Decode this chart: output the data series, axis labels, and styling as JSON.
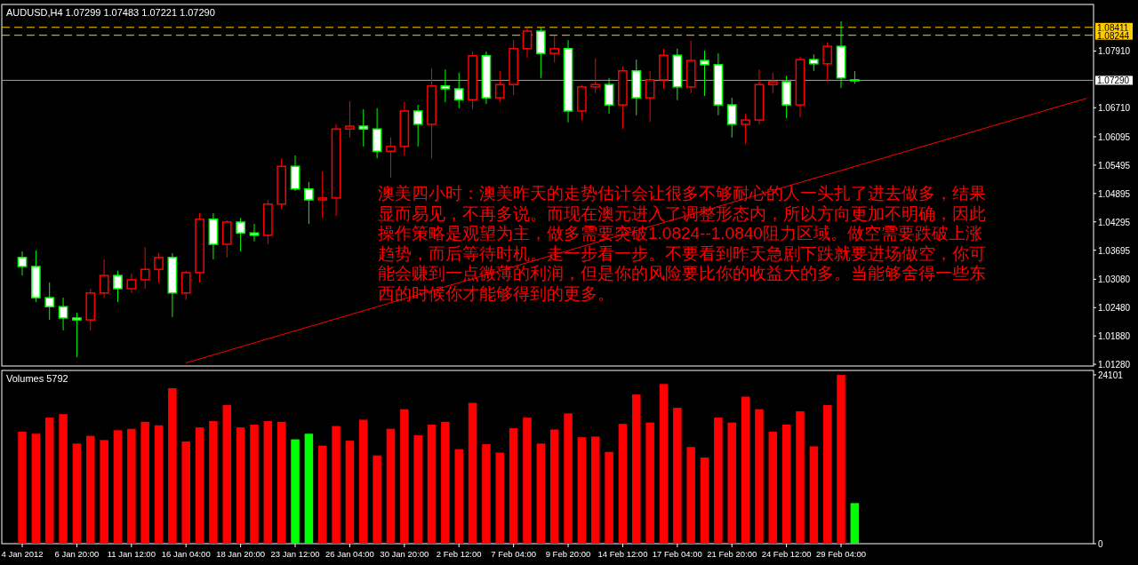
{
  "chart_data": [
    {
      "type": "candlestick",
      "title": "AUDUSD,H4  1.07299 1.07483 1.07221 1.07290",
      "categories": [
        null,
        null,
        null,
        null,
        null,
        null,
        null,
        null,
        null,
        null,
        null,
        null,
        null,
        null,
        null,
        null,
        null,
        null,
        null,
        null,
        null,
        null,
        null,
        null,
        null,
        null,
        null,
        null,
        null,
        null,
        null,
        null,
        null,
        null,
        null,
        null,
        null,
        null,
        null,
        null,
        null,
        null,
        null,
        null,
        null,
        null,
        null,
        null,
        null,
        null,
        null,
        null,
        null,
        null,
        null,
        null,
        null,
        null,
        null,
        null,
        null,
        null,
        null,
        null,
        null,
        null,
        null,
        null,
        null,
        null,
        null,
        null,
        null,
        null,
        null,
        null,
        null,
        null,
        null,
        null
      ],
      "ohlc": [
        null,
        [
          1.0354,
          1.0367,
          1.0316,
          1.0335
        ],
        [
          1.0335,
          1.0369,
          1.026,
          1.0269
        ],
        [
          1.0269,
          1.0301,
          1.0222,
          1.025
        ],
        [
          1.025,
          1.0269,
          1.02,
          1.0226
        ],
        [
          1.0226,
          1.0237,
          1.0143,
          1.0222
        ],
        [
          1.0222,
          1.0288,
          1.02,
          1.0279
        ],
        [
          1.0279,
          1.035,
          1.0269,
          1.0316
        ],
        [
          1.0316,
          1.0326,
          1.026,
          1.0288
        ],
        [
          1.0288,
          1.032,
          1.0279,
          1.0307
        ],
        [
          1.0307,
          1.0376,
          1.0288,
          1.0329
        ],
        [
          1.0329,
          1.0363,
          1.0301,
          1.0354
        ],
        [
          1.0354,
          1.0363,
          1.0228,
          1.0279
        ],
        [
          1.0279,
          1.0326,
          1.0264,
          1.0322
        ],
        [
          1.0322,
          1.0448,
          1.0301,
          1.0435
        ],
        [
          1.0435,
          1.0448,
          1.035,
          1.0382
        ],
        [
          1.0382,
          1.0433,
          1.0354,
          1.0429
        ],
        [
          1.0429,
          1.0438,
          1.0367,
          1.0406
        ],
        [
          1.0406,
          1.0425,
          1.0388,
          1.0401
        ],
        [
          1.0401,
          1.0476,
          1.0382,
          1.0467
        ],
        [
          1.0467,
          1.0564,
          1.0457,
          1.0547
        ],
        [
          1.0547,
          1.057,
          1.0495,
          1.0499
        ],
        [
          1.0499,
          1.0514,
          1.0425,
          1.0476
        ],
        [
          1.0476,
          1.0536,
          1.0438,
          1.048
        ],
        [
          1.048,
          1.0636,
          1.0442,
          1.0626
        ],
        [
          1.0626,
          1.0685,
          1.0608,
          1.0632
        ],
        [
          1.0632,
          1.0668,
          1.0589,
          1.0626
        ],
        [
          1.0626,
          1.067,
          1.0564,
          1.0579
        ],
        [
          1.0579,
          1.0608,
          1.0523,
          1.0589
        ],
        [
          1.0589,
          1.0683,
          1.057,
          1.0664
        ],
        [
          1.0664,
          1.0677,
          1.0589,
          1.0636
        ],
        [
          1.0636,
          1.0754,
          1.0564,
          1.0717
        ],
        [
          1.0717,
          1.0752,
          1.0683,
          1.0711
        ],
        [
          1.0711,
          1.0745,
          1.067,
          1.0688
        ],
        [
          1.0688,
          1.079,
          1.0668,
          1.0781
        ],
        [
          1.0781,
          1.079,
          1.0679,
          1.0692
        ],
        [
          1.0692,
          1.0749,
          1.0683,
          1.072
        ],
        [
          1.072,
          1.0814,
          1.0698,
          1.0796
        ],
        [
          1.0796,
          1.0841,
          1.0777,
          1.0833
        ],
        [
          1.0833,
          1.0841,
          1.0734,
          1.0786
        ],
        [
          1.0786,
          1.0824,
          1.0767,
          1.0796
        ],
        [
          1.0796,
          1.0814,
          1.064,
          1.0664
        ],
        [
          1.0664,
          1.072,
          1.0645,
          1.0715
        ],
        [
          1.0715,
          1.0775,
          1.0702,
          1.072
        ],
        [
          1.072,
          1.0734,
          1.0658,
          1.0677
        ],
        [
          1.0677,
          1.0758,
          1.0626,
          1.0749
        ],
        [
          1.0749,
          1.0773,
          1.0655,
          1.0692
        ],
        [
          1.0692,
          1.0749,
          1.0641,
          1.073
        ],
        [
          1.073,
          1.0796,
          1.0711,
          1.0782
        ],
        [
          1.0782,
          1.0796,
          1.0687,
          1.0715
        ],
        [
          1.0715,
          1.0813,
          1.0702,
          1.0771
        ],
        [
          1.0771,
          1.0792,
          1.0696,
          1.0762
        ],
        [
          1.0762,
          1.0786,
          1.0655,
          1.0677
        ],
        [
          1.0677,
          1.0692,
          1.0608,
          1.0636
        ],
        [
          1.0636,
          1.0658,
          1.0594,
          1.0645
        ],
        [
          1.0645,
          1.0752,
          1.0636,
          1.072
        ],
        [
          1.072,
          1.0745,
          1.0702,
          1.0726
        ],
        [
          1.0726,
          1.0739,
          1.0649,
          1.0677
        ],
        [
          1.0677,
          1.0779,
          1.0651,
          1.0773
        ],
        [
          1.0773,
          1.0784,
          1.0749,
          1.0764
        ],
        [
          1.0764,
          1.0809,
          1.0726,
          1.0801
        ],
        [
          1.0801,
          1.0854,
          1.0713,
          1.0734
        ],
        [
          1.07299,
          1.07483,
          1.07221,
          1.0729
        ],
        null,
        null,
        null,
        null,
        null,
        null,
        null,
        null,
        null,
        null,
        null,
        null,
        null,
        null,
        null,
        null,
        null
      ],
      "series": [
        {
          "type": "line",
          "color": "#ff0000",
          "values": [
            null,
            null,
            null,
            null,
            null,
            null,
            null,
            null,
            null,
            null,
            null,
            null,
            null,
            1.0131,
            null,
            null,
            null,
            null,
            null,
            null,
            null,
            null,
            null,
            null,
            null,
            null,
            null,
            null,
            null,
            null,
            null,
            null,
            null,
            null,
            null,
            null,
            null,
            null,
            null,
            null,
            null,
            null,
            null,
            null,
            null,
            null,
            null,
            null,
            null,
            null,
            null,
            null,
            null,
            null,
            null,
            null,
            null,
            null,
            null,
            null,
            null,
            null,
            null,
            null,
            null,
            null,
            null,
            null,
            null,
            null,
            null,
            null,
            null,
            null,
            null,
            null,
            null,
            null,
            null,
            1.0691
          ]
        }
      ],
      "ylim": [
        1.01244,
        1.08896
      ],
      "yticks": [
        {
          "value": 1.0128,
          "label": "1.01280"
        },
        {
          "value": 1.0188,
          "label": "1.01880"
        },
        {
          "value": 1.0248,
          "label": "1.02480"
        },
        {
          "value": 1.0308,
          "label": "1.03080"
        },
        {
          "value": 1.03695,
          "label": "1.03695"
        },
        {
          "value": 1.04295,
          "label": "1.04295"
        },
        {
          "value": 1.04895,
          "label": "1.04895"
        },
        {
          "value": 1.05495,
          "label": "1.05495"
        },
        {
          "value": 1.06095,
          "label": "1.06095"
        },
        {
          "value": 1.0671,
          "label": "1.06710"
        },
        {
          "value": 1.0791,
          "label": "1.07910"
        }
      ],
      "ref_lines": [
        {
          "axis": "y",
          "value": 1.08411,
          "label": "1.08411",
          "color": "#ffcc00",
          "line_style": "dashed"
        },
        {
          "axis": "y",
          "value": 1.08244,
          "label": "1.08244",
          "color": "#ffcc00",
          "line_style": "dashed"
        },
        {
          "axis": "y",
          "value": 1.0729,
          "label": "1.07290",
          "color": "#a0a0a0",
          "line_style": "solid"
        }
      ],
      "annotations": [
        "澳美四小时：澳美昨天的走势估计会让很多不够耐心的人一头扎了进去做多，结果",
        "显而易见，不再多说。而现在澳元进入了调整形态内，所以方向更加不明确，因此",
        "操作策略是观望为主，做多需要突破1.0824--1.0840阻力区域。做空需要跌破上涨",
        "趋势，而后等待时机。走一步看一步。不要看到昨天急剧下跌就要进场做空，你可",
        "能会赚到一点微薄的利润，但是你的风险要比你的收益大的多。当能够舍得一些东",
        "西的时候你才能够得到的更多。"
      ],
      "tick_labels": "y"
    },
    {
      "type": "bar",
      "title": "Volumes 5792",
      "categories": [
        null,
        "4 Jan 2012",
        null,
        null,
        null,
        "6 Jan 20:00",
        null,
        null,
        null,
        "11 Jan 12:00",
        null,
        null,
        null,
        "16 Jan 04:00",
        null,
        null,
        null,
        "18 Jan 20:00",
        null,
        null,
        null,
        "23 Jan 12:00",
        null,
        null,
        null,
        "26 Jan 04:00",
        null,
        null,
        null,
        "30 Jan 20:00",
        null,
        null,
        null,
        "2 Feb 12:00",
        null,
        null,
        null,
        "7 Feb 04:00",
        null,
        null,
        null,
        "9 Feb 20:00",
        null,
        null,
        null,
        "14 Feb 12:00",
        null,
        null,
        null,
        "17 Feb 04:00",
        null,
        null,
        null,
        "21 Feb 20:00",
        null,
        null,
        null,
        "24 Feb 12:00",
        null,
        null,
        null,
        "29 Feb 04:00",
        null,
        null,
        null,
        null,
        null,
        null,
        null,
        null,
        null,
        null,
        null,
        null,
        null,
        null,
        null,
        null,
        null,
        null
      ],
      "values": [
        null,
        16000,
        15700,
        18000,
        18500,
        14300,
        15400,
        14800,
        16200,
        16400,
        17400,
        16900,
        22200,
        14600,
        16600,
        17500,
        19800,
        16600,
        17000,
        17500,
        17400,
        14900,
        15700,
        14000,
        16800,
        14700,
        17700,
        12600,
        16400,
        19200,
        15500,
        17000,
        17400,
        13500,
        20100,
        14200,
        13000,
        16500,
        18000,
        14300,
        16300,
        18600,
        15200,
        15300,
        13100,
        17100,
        21300,
        17300,
        22800,
        19400,
        13800,
        12300,
        18000,
        17300,
        21000,
        19200,
        16000,
        17000,
        18900,
        13900,
        19800,
        24101,
        5792,
        null,
        null,
        null,
        null,
        null,
        null,
        null,
        null,
        null,
        null,
        null,
        null,
        null,
        null,
        null,
        null,
        null
      ],
      "colors": [
        null,
        "#ff0000",
        "#ff0000",
        "#ff0000",
        "#ff0000",
        "#ff0000",
        "#ff0000",
        "#ff0000",
        "#ff0000",
        "#ff0000",
        "#ff0000",
        "#ff0000",
        "#ff0000",
        "#ff0000",
        "#ff0000",
        "#ff0000",
        "#ff0000",
        "#ff0000",
        "#ff0000",
        "#ff0000",
        "#ff0000",
        "#00ff00",
        "#00ff00",
        "#ff0000",
        "#ff0000",
        "#ff0000",
        "#ff0000",
        "#ff0000",
        "#ff0000",
        "#ff0000",
        "#ff0000",
        "#ff0000",
        "#ff0000",
        "#ff0000",
        "#ff0000",
        "#ff0000",
        "#ff0000",
        "#ff0000",
        "#ff0000",
        "#ff0000",
        "#ff0000",
        "#ff0000",
        "#ff0000",
        "#ff0000",
        "#ff0000",
        "#ff0000",
        "#ff0000",
        "#ff0000",
        "#ff0000",
        "#ff0000",
        "#ff0000",
        "#ff0000",
        "#ff0000",
        "#ff0000",
        "#ff0000",
        "#ff0000",
        "#ff0000",
        "#ff0000",
        "#ff0000",
        "#ff0000",
        "#ff0000",
        "#ff0000",
        "#00ff00",
        null,
        null,
        null,
        null,
        null,
        null,
        null,
        null,
        null,
        null,
        null,
        null,
        null,
        null,
        null,
        null,
        null
      ],
      "ylim": [
        0,
        24735
      ],
      "yticks": [
        0,
        24101
      ]
    }
  ]
}
